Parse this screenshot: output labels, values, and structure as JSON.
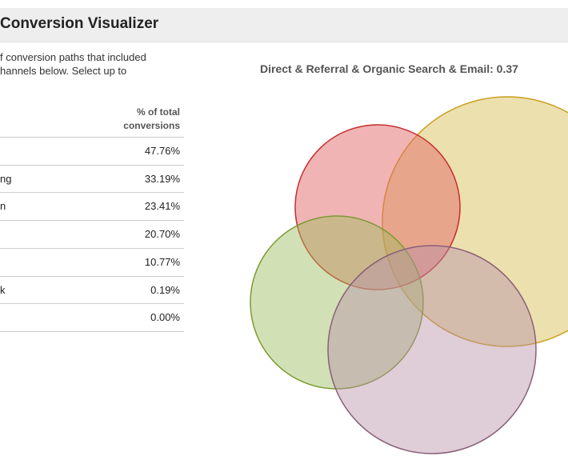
{
  "header": {
    "title": "Conversion Visualizer"
  },
  "intro": [
    "f conversion paths that included",
    "hannels below. Select up to"
  ],
  "table": {
    "header": [
      "% of total",
      "conversions"
    ],
    "rows": [
      {
        "value": "47.76%"
      },
      {
        "label": "ng",
        "value": "33.19%"
      },
      {
        "label": "n",
        "value": "23.41%"
      },
      {
        "value": "20.70%"
      },
      {
        "value": "10.77%"
      },
      {
        "label": "k",
        "value": "0.19%"
      },
      {
        "value": "0.00%"
      }
    ]
  },
  "venn": {
    "title": "Direct & Referral & Organic Search & Email: 0.37"
  }
}
